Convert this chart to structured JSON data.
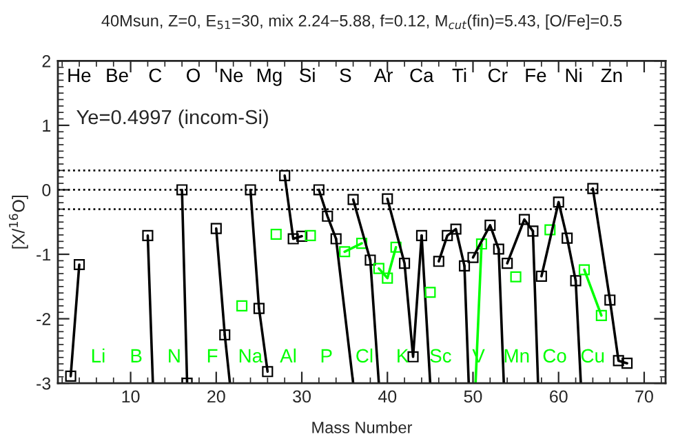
{
  "chart_data": {
    "type": "line",
    "title": "40Msun, Z=0, E$_{51}$=30, mix 2.24−5.88, f=0.12, M$_{cut}$(fin)=5.43, [O/Fe]=0.5",
    "xlabel": "Mass Number",
    "ylabel": "[X/$^{16}$O]",
    "xlim": [
      1.5,
      72.5
    ],
    "ylim": [
      -3,
      2
    ],
    "xticks": [
      10,
      20,
      30,
      40,
      50,
      60,
      70
    ],
    "yticks": [
      -3,
      -2,
      -1,
      0,
      1,
      2
    ],
    "tick_labels": "xy",
    "grid": false,
    "legend": false,
    "line_style": "solid",
    "marker": "square",
    "ref_lines": [
      {
        "axis": "y",
        "value": 0.3,
        "color": "#000000",
        "line_style": "dotted"
      },
      {
        "axis": "y",
        "value": 0,
        "color": "#000000",
        "line_style": "dotted"
      },
      {
        "axis": "y",
        "value": -0.3,
        "color": "#000000",
        "line_style": "dotted"
      }
    ],
    "series": [
      {
        "color": "#000000",
        "x": [
          3,
          4
        ],
        "values": [
          -2.89,
          -1.16
        ]
      },
      {
        "color": "#000000",
        "x": [
          12
        ],
        "values": [
          -0.71
        ]
      },
      {
        "color": "#000000",
        "x": [
          12,
          12.6
        ],
        "values": [
          -0.71,
          -3
        ],
        "marker": "none"
      },
      {
        "color": "#000000",
        "x": [
          16,
          16.6
        ],
        "values": [
          0,
          -3
        ]
      },
      {
        "color": "#000000",
        "x": [
          20,
          21
        ],
        "values": [
          -0.6,
          -2.25
        ]
      },
      {
        "color": "#000000",
        "x": [
          21,
          21.6
        ],
        "values": [
          -2.25,
          -3
        ],
        "marker": "none"
      },
      {
        "color": "#00ff00",
        "x": [
          23
        ],
        "values": [
          -1.8
        ]
      },
      {
        "color": "#000000",
        "x": [
          24,
          25,
          26
        ],
        "values": [
          0,
          -1.84,
          -2.82
        ]
      },
      {
        "color": "#00ff00",
        "x": [
          27
        ],
        "values": [
          -0.69
        ]
      },
      {
        "color": "#000000",
        "x": [
          28,
          29,
          30
        ],
        "values": [
          0.22,
          -0.76,
          -0.72
        ]
      },
      {
        "color": "#00ff00",
        "x": [
          31
        ],
        "values": [
          -0.71
        ]
      },
      {
        "color": "#000000",
        "x": [
          32,
          33,
          34
        ],
        "values": [
          0,
          -0.41,
          -0.76
        ]
      },
      {
        "color": "#000000",
        "x": [
          34,
          36
        ],
        "values": [
          -0.76,
          -3
        ],
        "marker": "none"
      },
      {
        "color": "#00ff00",
        "x": [
          35,
          37
        ],
        "values": [
          -0.96,
          -0.83
        ]
      },
      {
        "color": "#000000",
        "x": [
          36,
          38
        ],
        "values": [
          -0.15,
          -1.09
        ]
      },
      {
        "color": "#000000",
        "x": [
          38,
          39
        ],
        "values": [
          -1.09,
          -3
        ],
        "marker": "none"
      },
      {
        "color": "#00ff00",
        "x": [
          39,
          40,
          41
        ],
        "values": [
          -1.22,
          -1.37,
          -0.89
        ]
      },
      {
        "color": "#000000",
        "x": [
          40,
          42,
          43,
          44
        ],
        "values": [
          -0.14,
          -1.14,
          -2.59,
          -0.71
        ]
      },
      {
        "color": "#000000",
        "x": [
          44,
          45
        ],
        "values": [
          -0.71,
          -3
        ],
        "marker": "none"
      },
      {
        "color": "#00ff00",
        "x": [
          45
        ],
        "values": [
          -1.59
        ]
      },
      {
        "color": "#000000",
        "x": [
          46,
          47,
          48,
          49
        ],
        "values": [
          -1.11,
          -0.71,
          -0.61,
          -1.18
        ]
      },
      {
        "color": "#000000",
        "x": [
          49,
          49.5
        ],
        "values": [
          -1.18,
          -3
        ],
        "marker": "none"
      },
      {
        "color": "#00ff00",
        "x": [
          51
        ],
        "values": [
          -0.84
        ]
      },
      {
        "color": "#00ff00",
        "x": [
          51,
          50.3
        ],
        "values": [
          -0.84,
          -3
        ],
        "marker": "none"
      },
      {
        "color": "#000000",
        "x": [
          50,
          52,
          53
        ],
        "values": [
          -1.05,
          -0.55,
          -0.92
        ]
      },
      {
        "color": "#000000",
        "x": [
          53,
          53.6
        ],
        "values": [
          -0.92,
          -3
        ],
        "marker": "none"
      },
      {
        "color": "#00ff00",
        "x": [
          55
        ],
        "values": [
          -1.35
        ]
      },
      {
        "color": "#000000",
        "x": [
          54,
          56,
          57
        ],
        "values": [
          -1.14,
          -0.46,
          -0.64
        ]
      },
      {
        "color": "#000000",
        "x": [
          57,
          57.6
        ],
        "values": [
          -0.64,
          -3
        ],
        "marker": "none"
      },
      {
        "color": "#00ff00",
        "x": [
          59
        ],
        "values": [
          -0.62
        ]
      },
      {
        "color": "#000000",
        "x": [
          58,
          60,
          61,
          62
        ],
        "values": [
          -1.34,
          -0.19,
          -0.75,
          -1.41
        ]
      },
      {
        "color": "#000000",
        "x": [
          62,
          62.6
        ],
        "values": [
          -1.41,
          -3
        ],
        "marker": "none"
      },
      {
        "color": "#00ff00",
        "x": [
          63,
          65
        ],
        "values": [
          -1.24,
          -1.95
        ]
      },
      {
        "color": "#000000",
        "x": [
          64,
          66,
          67,
          68
        ],
        "values": [
          0.02,
          -1.71,
          -2.65,
          -2.69
        ]
      }
    ],
    "annotations": [
      "Ye=0.4997 (incom-Si)",
      "He",
      "Li",
      "Be",
      "B",
      "C",
      "N",
      "O",
      "F",
      "Ne",
      "Na",
      "Mg",
      "Al",
      "Si",
      "P",
      "S",
      "Cl",
      "Ar",
      "K",
      "Ca",
      "Sc",
      "Ti",
      "V",
      "Cr",
      "Mn",
      "Fe",
      "Co",
      "Ni",
      "Cu",
      "Zn"
    ]
  }
}
